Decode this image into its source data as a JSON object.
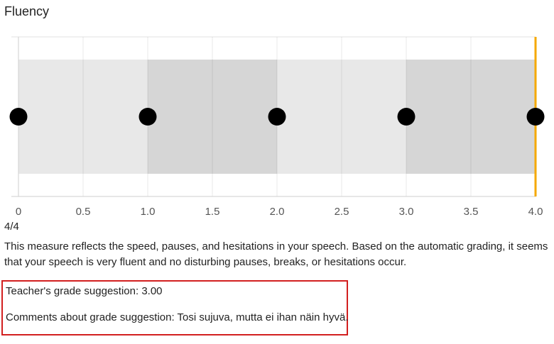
{
  "panel": {
    "title": "Fluency",
    "score_text": "4/4",
    "description": "This measure reflects the speed, pauses, and hesitations in your speech. Based on the automatic grading, it seems that your speech is very fluent and no disturbing pauses, breaks, or hesitations occur.",
    "teacher_grade": "Teacher's grade suggestion: 3.00",
    "comment": "Comments about grade suggestion: Tosi sujuva, mutta ei ihan näin hyvä."
  },
  "chart_data": {
    "type": "scatter",
    "xlim": [
      0,
      4
    ],
    "ticks": [
      "0",
      "0.5",
      "1.0",
      "1.5",
      "2.0",
      "2.5",
      "3.0",
      "3.5",
      "4.0"
    ],
    "tick_values": [
      0,
      0.5,
      1,
      1.5,
      2,
      2.5,
      3,
      3.5,
      4
    ],
    "points": [
      0,
      1,
      2,
      3,
      4
    ],
    "bands": [
      {
        "from": 0,
        "to": 1,
        "color": "#e8e8e8"
      },
      {
        "from": 1,
        "to": 2,
        "color": "#d6d6d6"
      },
      {
        "from": 2,
        "to": 3,
        "color": "#e8e8e8"
      },
      {
        "from": 3,
        "to": 4,
        "color": "#d6d6d6"
      }
    ],
    "marker_value": 4,
    "marker_color": "#f5a800",
    "grid": true
  }
}
